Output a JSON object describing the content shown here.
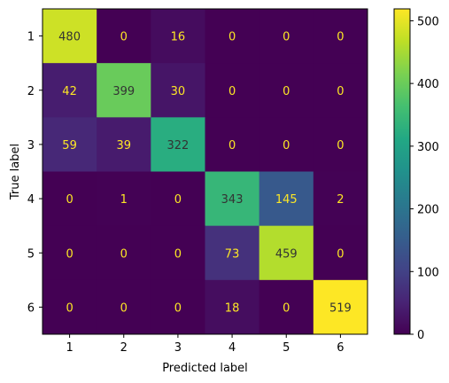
{
  "chart_data": {
    "type": "heatmap",
    "title": "",
    "xlabel": "Predicted label",
    "ylabel": "True label",
    "x_labels": [
      "1",
      "2",
      "3",
      "4",
      "5",
      "6"
    ],
    "y_labels": [
      "1",
      "2",
      "3",
      "4",
      "5",
      "6"
    ],
    "matrix": [
      [
        480,
        0,
        16,
        0,
        0,
        0
      ],
      [
        42,
        399,
        30,
        0,
        0,
        0
      ],
      [
        59,
        39,
        322,
        0,
        0,
        0
      ],
      [
        0,
        1,
        0,
        343,
        145,
        2
      ],
      [
        0,
        0,
        0,
        73,
        459,
        0
      ],
      [
        0,
        0,
        0,
        18,
        0,
        519
      ]
    ],
    "colormap": "viridis",
    "value_range": [
      0,
      519
    ],
    "colorbar": {
      "ticks": [
        "0",
        "100",
        "200",
        "300",
        "400",
        "500"
      ],
      "tick_values": [
        0,
        100,
        200,
        300,
        400,
        500
      ]
    },
    "text_colors": {
      "on_dark": "#fde725",
      "on_light": "#333333"
    }
  }
}
